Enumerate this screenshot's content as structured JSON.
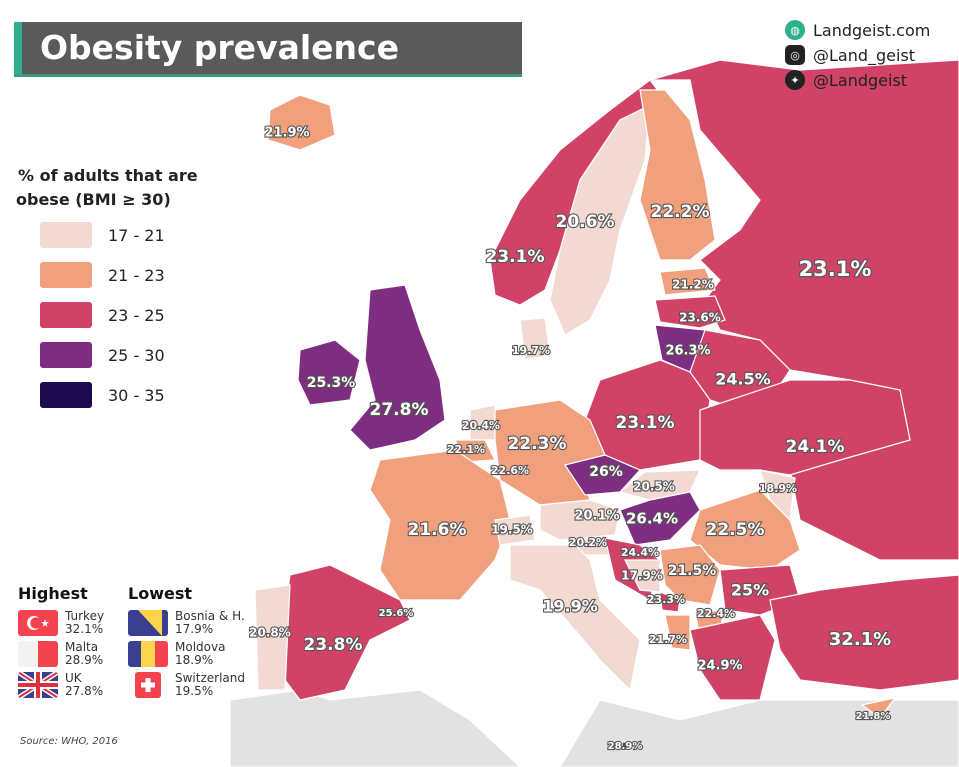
{
  "header": {
    "title": "Obesity prevalence"
  },
  "social": [
    {
      "icon": "globe-icon",
      "label": "Landgeist.com"
    },
    {
      "icon": "instagram-icon",
      "label": "@Land_geist"
    },
    {
      "icon": "twitter-icon",
      "label": "@Landgeist"
    }
  ],
  "legend": {
    "title_line1": "% of adults that are",
    "title_line2": "obese (BMI ≥ 30)",
    "bins": [
      {
        "label": "17 - 21",
        "color": "#f2dad3"
      },
      {
        "label": "21 - 23",
        "color": "#f0a07d"
      },
      {
        "label": "23 - 25",
        "color": "#d04366"
      },
      {
        "label": "25 - 30",
        "color": "#7e2e80"
      },
      {
        "label": "30 - 35",
        "color": "#1c0b4f"
      }
    ]
  },
  "no_data_color": "#e2e2e2",
  "highest": {
    "title": "Highest",
    "items": [
      {
        "country": "Turkey",
        "value": "32.1%",
        "flag": "turkey-flag-icon"
      },
      {
        "country": "Malta",
        "value": "28.9%",
        "flag": "malta-flag-icon"
      },
      {
        "country": "UK",
        "value": "27.8%",
        "flag": "uk-flag-icon"
      }
    ]
  },
  "lowest": {
    "title": "Lowest",
    "items": [
      {
        "country": "Bosnia & H.",
        "value": "17.9%",
        "flag": "bosnia-flag-icon"
      },
      {
        "country": "Moldova",
        "value": "18.9%",
        "flag": "moldova-flag-icon"
      },
      {
        "country": "Switzerland",
        "value": "19.5%",
        "flag": "switzerland-flag-icon"
      }
    ]
  },
  "source": "Source: WHO, 2016",
  "map_labels": [
    {
      "value": "21.9%",
      "bin": 1
    },
    {
      "value": "23.1%",
      "bin": 2
    },
    {
      "value": "20.6%",
      "bin": 0
    },
    {
      "value": "22.2%",
      "bin": 1
    },
    {
      "value": "23.1%",
      "bin": 2
    },
    {
      "value": "21.2%",
      "bin": 1
    },
    {
      "value": "23.6%",
      "bin": 2
    },
    {
      "value": "26.3%",
      "bin": 3
    },
    {
      "value": "19.7%",
      "bin": 0
    },
    {
      "value": "25.3%",
      "bin": 3
    },
    {
      "value": "27.8%",
      "bin": 3
    },
    {
      "value": "24.5%",
      "bin": 2
    },
    {
      "value": "20.4%",
      "bin": 0
    },
    {
      "value": "22.1%",
      "bin": 1
    },
    {
      "value": "22.6%",
      "bin": 1
    },
    {
      "value": "22.3%",
      "bin": 1
    },
    {
      "value": "23.1%",
      "bin": 2
    },
    {
      "value": "24.1%",
      "bin": 2
    },
    {
      "value": "26%",
      "bin": 3
    },
    {
      "value": "20.5%",
      "bin": 0
    },
    {
      "value": "18.9%",
      "bin": 0
    },
    {
      "value": "21.6%",
      "bin": 1
    },
    {
      "value": "19.5%",
      "bin": 0
    },
    {
      "value": "20.1%",
      "bin": 0
    },
    {
      "value": "26.4%",
      "bin": 3
    },
    {
      "value": "22.5%",
      "bin": 1
    },
    {
      "value": "20.2%",
      "bin": 0
    },
    {
      "value": "24.4%",
      "bin": 2
    },
    {
      "value": "17.9%",
      "bin": 0
    },
    {
      "value": "21.5%",
      "bin": 1
    },
    {
      "value": "25%",
      "bin": 2
    },
    {
      "value": "23.3%",
      "bin": 2
    },
    {
      "value": "22.4%",
      "bin": 1
    },
    {
      "value": "21.7%",
      "bin": 1
    },
    {
      "value": "19.9%",
      "bin": 0
    },
    {
      "value": "32.1%",
      "bin": 4
    },
    {
      "value": "23.8%",
      "bin": 2
    },
    {
      "value": "20.8%",
      "bin": 0
    },
    {
      "value": "25.6%",
      "bin": 3
    },
    {
      "value": "24.9%",
      "bin": 2
    },
    {
      "value": "21.8%",
      "bin": 1
    },
    {
      "value": "28.9%",
      "bin": 3
    }
  ]
}
